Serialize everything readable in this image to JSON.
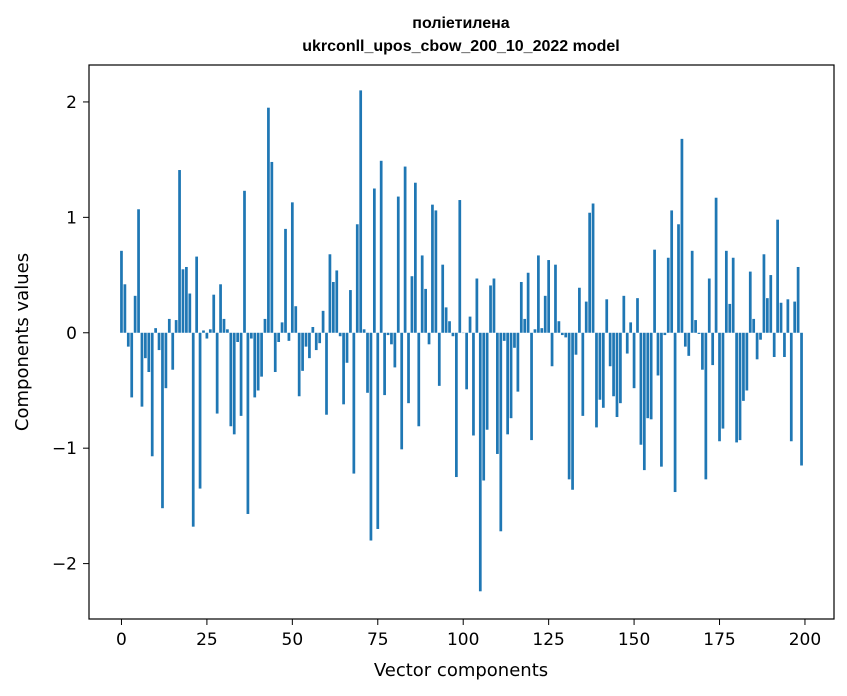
{
  "chart_data": {
    "type": "bar",
    "title": "поліетилена",
    "subtitle": "ukrconll_upos_cbow_200_10_2022 model",
    "xlabel": "Vector components",
    "ylabel": "Components values",
    "xlim": [
      -9.5,
      208.5
    ],
    "ylim": [
      -2.48,
      2.32
    ],
    "xticks": [
      0,
      25,
      50,
      75,
      100,
      125,
      150,
      175,
      200
    ],
    "xtick_labels": [
      "0",
      "25",
      "50",
      "75",
      "100",
      "125",
      "150",
      "175",
      "200"
    ],
    "yticks": [
      -2,
      -1,
      0,
      1,
      2
    ],
    "ytick_labels": [
      "−2",
      "−1",
      "0",
      "1",
      "2"
    ],
    "bar_color": "#1f77b4",
    "grid": false,
    "legend": false,
    "x": [
      0,
      1,
      2,
      3,
      4,
      5,
      6,
      7,
      8,
      9,
      10,
      11,
      12,
      13,
      14,
      15,
      16,
      17,
      18,
      19,
      20,
      21,
      22,
      23,
      24,
      25,
      26,
      27,
      28,
      29,
      30,
      31,
      32,
      33,
      34,
      35,
      36,
      37,
      38,
      39,
      40,
      41,
      42,
      43,
      44,
      45,
      46,
      47,
      48,
      49,
      50,
      51,
      52,
      53,
      54,
      55,
      56,
      57,
      58,
      59,
      60,
      61,
      62,
      63,
      64,
      65,
      66,
      67,
      68,
      69,
      70,
      71,
      72,
      73,
      74,
      75,
      76,
      77,
      78,
      79,
      80,
      81,
      82,
      83,
      84,
      85,
      86,
      87,
      88,
      89,
      90,
      91,
      92,
      93,
      94,
      95,
      96,
      97,
      98,
      99,
      100,
      101,
      102,
      103,
      104,
      105,
      106,
      107,
      108,
      109,
      110,
      111,
      112,
      113,
      114,
      115,
      116,
      117,
      118,
      119,
      120,
      121,
      122,
      123,
      124,
      125,
      126,
      127,
      128,
      129,
      130,
      131,
      132,
      133,
      134,
      135,
      136,
      137,
      138,
      139,
      140,
      141,
      142,
      143,
      144,
      145,
      146,
      147,
      148,
      149,
      150,
      151,
      152,
      153,
      154,
      155,
      156,
      157,
      158,
      159,
      160,
      161,
      162,
      163,
      164,
      165,
      166,
      167,
      168,
      169,
      170,
      171,
      172,
      173,
      174,
      175,
      176,
      177,
      178,
      179,
      180,
      181,
      182,
      183,
      184,
      185,
      186,
      187,
      188,
      189,
      190,
      191,
      192,
      193,
      194,
      195,
      196,
      197,
      198,
      199
    ],
    "values": [
      0.71,
      0.42,
      -0.12,
      -0.56,
      0.32,
      1.07,
      -0.64,
      -0.22,
      -0.34,
      -1.07,
      0.04,
      -0.15,
      -1.52,
      -0.48,
      0.12,
      -0.32,
      0.11,
      1.41,
      0.55,
      0.57,
      0.34,
      -1.68,
      0.66,
      -1.35,
      0.02,
      -0.05,
      0.03,
      0.33,
      -0.7,
      0.42,
      0.12,
      0.03,
      -0.81,
      -0.88,
      -0.08,
      -0.72,
      1.23,
      -1.57,
      -0.05,
      -0.56,
      -0.5,
      -0.38,
      0.12,
      1.95,
      1.48,
      -0.34,
      -0.08,
      0.09,
      0.9,
      -0.07,
      1.13,
      0.23,
      -0.55,
      -0.33,
      -0.12,
      -0.22,
      0.05,
      -0.15,
      -0.09,
      0.19,
      -0.71,
      0.68,
      0.44,
      0.54,
      -0.03,
      -0.62,
      -0.26,
      0.37,
      -1.22,
      0.94,
      2.1,
      0.03,
      -0.52,
      -1.8,
      1.25,
      -1.7,
      1.49,
      -0.54,
      -0.02,
      -0.1,
      -0.3,
      1.18,
      -1.01,
      1.44,
      -0.61,
      0.49,
      1.3,
      -0.81,
      0.67,
      0.38,
      -0.1,
      1.11,
      1.06,
      -0.46,
      0.59,
      0.22,
      0.1,
      -0.03,
      -1.25,
      1.15,
      0.0,
      -0.49,
      0.14,
      -0.89,
      0.47,
      -2.24,
      -1.28,
      -0.84,
      0.41,
      0.47,
      -1.05,
      -1.72,
      -0.07,
      -0.88,
      -0.74,
      -0.13,
      -0.51,
      0.44,
      0.12,
      0.52,
      -0.93,
      0.03,
      0.67,
      0.04,
      0.32,
      0.63,
      -0.29,
      0.59,
      0.1,
      -0.02,
      -0.04,
      -1.27,
      -1.36,
      -0.19,
      0.39,
      -0.72,
      0.27,
      1.04,
      1.12,
      -0.82,
      -0.58,
      -0.65,
      0.29,
      -0.29,
      -0.55,
      -0.73,
      -0.61,
      0.32,
      -0.18,
      0.09,
      -0.48,
      0.3,
      -0.97,
      -1.19,
      -0.74,
      -0.75,
      0.72,
      -0.37,
      -1.16,
      -0.02,
      0.65,
      1.06,
      -1.38,
      0.94,
      1.68,
      -0.12,
      -0.2,
      0.71,
      0.11,
      -0.01,
      -0.32,
      -1.27,
      0.47,
      -0.28,
      1.17,
      -0.94,
      -0.83,
      0.71,
      0.25,
      0.65,
      -0.95,
      -0.93,
      -0.59,
      -0.5,
      0.53,
      0.12,
      -0.23,
      -0.06,
      0.68,
      0.3,
      0.5,
      -0.21,
      0.98,
      0.26,
      -0.21,
      0.29,
      -0.94,
      0.27,
      0.57,
      -1.15
    ]
  }
}
